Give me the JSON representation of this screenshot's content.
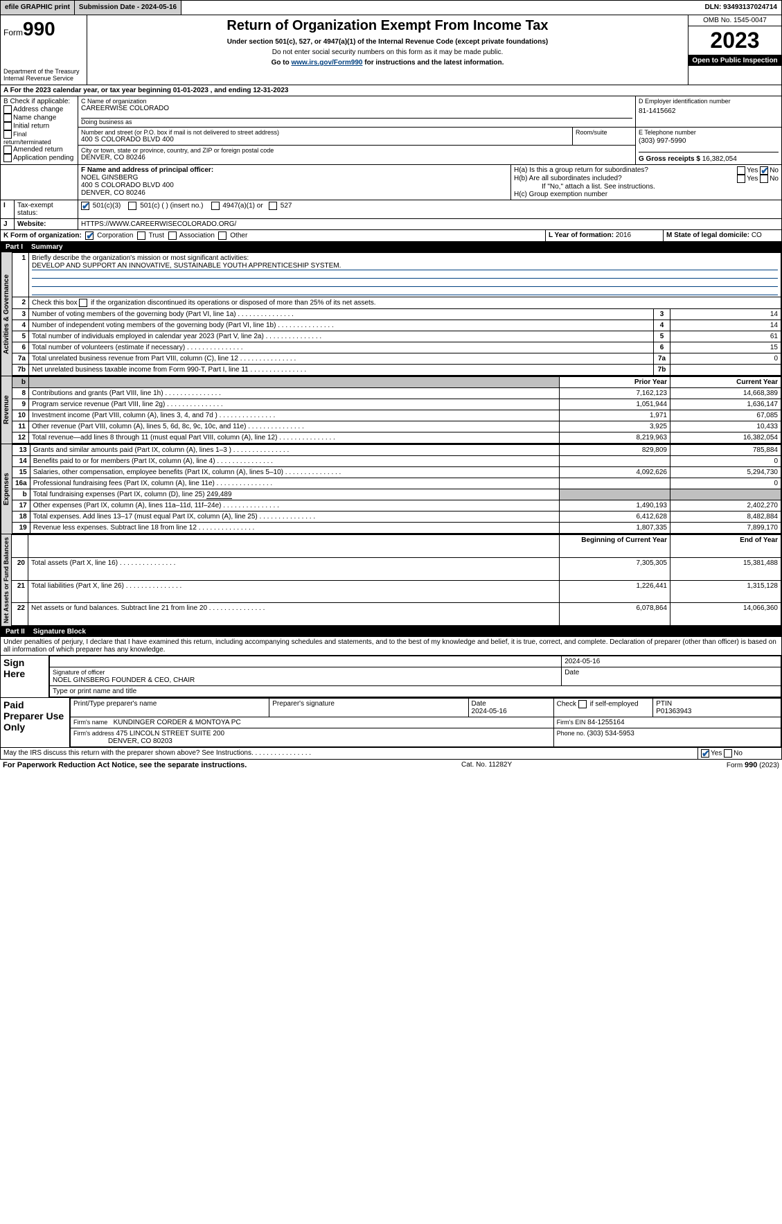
{
  "topbar": {
    "efile": "efile GRAPHIC print",
    "submission": "Submission Date - 2024-05-16",
    "dln": "DLN: 93493137024714"
  },
  "header": {
    "form_label": "Form",
    "form_num": "990",
    "dept1": "Department of the Treasury",
    "dept2": "Internal Revenue Service",
    "title": "Return of Organization Exempt From Income Tax",
    "sub1": "Under section 501(c), 527, or 4947(a)(1) of the Internal Revenue Code (except private foundations)",
    "sub2": "Do not enter social security numbers on this form as it may be made public.",
    "sub3": "Go to ",
    "link": "www.irs.gov/Form990",
    "sub3b": " for instructions and the latest information.",
    "omb": "OMB No. 1545-0047",
    "year": "2023",
    "openpub": "Open to Public Inspection"
  },
  "line_a": "A For the 2023 calendar year, or tax year beginning 01-01-2023    , and ending 12-31-2023",
  "box_b": {
    "title": "B Check if applicable:",
    "items": [
      "Address change",
      "Name change",
      "Initial return",
      "Final return/terminated",
      "Amended return",
      "Application pending"
    ]
  },
  "box_c": {
    "lbl_name": "C Name of organization",
    "name": "CAREERWISE COLORADO",
    "dba": "Doing business as",
    "lbl_addr": "Number and street (or P.O. box if mail is not delivered to street address)",
    "addr": "400 S COLORADO BLVD 400",
    "room": "Room/suite",
    "lbl_city": "City or town, state or province, country, and ZIP or foreign postal code",
    "city": "DENVER, CO  80246"
  },
  "box_d": {
    "lbl": "D Employer identification number",
    "val": "81-1415662"
  },
  "box_e": {
    "lbl": "E Telephone number",
    "val": "(303) 997-5990"
  },
  "box_g": {
    "lbl": "G Gross receipts $ ",
    "val": "16,382,054"
  },
  "box_f": {
    "lbl": "F  Name and address of principal officer:",
    "name": "NOEL GINSBERG",
    "addr1": "400 S COLORADO BLVD 400",
    "addr2": "DENVER, CO  80246"
  },
  "box_h": {
    "a_lbl": "H(a)  Is this a group return for subordinates?",
    "b_lbl": "H(b)  Are all subordinates included?",
    "b_note": "If \"No,\" attach a list. See instructions.",
    "c_lbl": "H(c)  Group exemption number"
  },
  "tax_status": {
    "lbl": "Tax-exempt status:",
    "o1": "501(c)(3)",
    "o2": "501(c) (  ) (insert no.)",
    "o3": "4947(a)(1) or",
    "o4": "527"
  },
  "box_j": {
    "lbl": "J",
    "lbl2": "Website:",
    "val": "HTTPS://WWW.CAREERWISECOLORADO.ORG/"
  },
  "box_k": {
    "lbl": "K Form of organization:",
    "o1": "Corporation",
    "o2": "Trust",
    "o3": "Association",
    "o4": "Other"
  },
  "box_l": {
    "lbl": "L Year of formation: ",
    "val": "2016"
  },
  "box_m": {
    "lbl": "M State of legal domicile: ",
    "val": "CO"
  },
  "part1": {
    "part": "Part I",
    "title": "Summary"
  },
  "summary": {
    "l1_lbl": "Briefly describe the organization's mission or most significant activities:",
    "l1_val": "DEVELOP AND SUPPORT AN INNOVATIVE, SUSTAINABLE YOUTH APPRENTICESHIP SYSTEM.",
    "l2": "Check this box       if the organization discontinued its operations or disposed of more than 25% of its net assets.",
    "rows_gov": [
      {
        "n": "3",
        "t": "Number of voting members of the governing body (Part VI, line 1a)",
        "v": "14"
      },
      {
        "n": "4",
        "t": "Number of independent voting members of the governing body (Part VI, line 1b)",
        "v": "14"
      },
      {
        "n": "5",
        "t": "Total number of individuals employed in calendar year 2023 (Part V, line 2a)",
        "v": "61"
      },
      {
        "n": "6",
        "t": "Total number of volunteers (estimate if necessary)",
        "v": "15"
      },
      {
        "n": "7a",
        "t": "Total unrelated business revenue from Part VIII, column (C), line 12",
        "v": "0"
      },
      {
        "n": "7b",
        "t": "Net unrelated business taxable income from Form 990-T, Part I, line 11",
        "v": ""
      }
    ],
    "hdr_prior": "Prior Year",
    "hdr_curr": "Current Year",
    "rows_rev": [
      {
        "n": "8",
        "t": "Contributions and grants (Part VIII, line 1h)",
        "p": "7,162,123",
        "c": "14,668,389"
      },
      {
        "n": "9",
        "t": "Program service revenue (Part VIII, line 2g)",
        "p": "1,051,944",
        "c": "1,636,147"
      },
      {
        "n": "10",
        "t": "Investment income (Part VIII, column (A), lines 3, 4, and 7d )",
        "p": "1,971",
        "c": "67,085"
      },
      {
        "n": "11",
        "t": "Other revenue (Part VIII, column (A), lines 5, 6d, 8c, 9c, 10c, and 11e)",
        "p": "3,925",
        "c": "10,433"
      },
      {
        "n": "12",
        "t": "Total revenue—add lines 8 through 11 (must equal Part VIII, column (A), line 12)",
        "p": "8,219,963",
        "c": "16,382,054"
      }
    ],
    "rows_exp": [
      {
        "n": "13",
        "t": "Grants and similar amounts paid (Part IX, column (A), lines 1–3 )",
        "p": "829,809",
        "c": "785,884"
      },
      {
        "n": "14",
        "t": "Benefits paid to or for members (Part IX, column (A), line 4)",
        "p": "",
        "c": "0"
      },
      {
        "n": "15",
        "t": "Salaries, other compensation, employee benefits (Part IX, column (A), lines 5–10)",
        "p": "4,092,626",
        "c": "5,294,730"
      },
      {
        "n": "16a",
        "t": "Professional fundraising fees (Part IX, column (A), line 11e)",
        "p": "",
        "c": "0"
      }
    ],
    "l16b": "Total fundraising expenses (Part IX, column (D), line 25) ",
    "l16b_val": "249,489",
    "rows_exp2": [
      {
        "n": "17",
        "t": "Other expenses (Part IX, column (A), lines 11a–11d, 11f–24e)",
        "p": "1,490,193",
        "c": "2,402,270"
      },
      {
        "n": "18",
        "t": "Total expenses. Add lines 13–17 (must equal Part IX, column (A), line 25)",
        "p": "6,412,628",
        "c": "8,482,884"
      },
      {
        "n": "19",
        "t": "Revenue less expenses. Subtract line 18 from line 12",
        "p": "1,807,335",
        "c": "7,899,170"
      }
    ],
    "hdr_begin": "Beginning of Current Year",
    "hdr_end": "End of Year",
    "rows_net": [
      {
        "n": "20",
        "t": "Total assets (Part X, line 16)",
        "p": "7,305,305",
        "c": "15,381,488"
      },
      {
        "n": "21",
        "t": "Total liabilities (Part X, line 26)",
        "p": "1,226,441",
        "c": "1,315,128"
      },
      {
        "n": "22",
        "t": "Net assets or fund balances. Subtract line 21 from line 20",
        "p": "6,078,864",
        "c": "14,066,360"
      }
    ]
  },
  "vert": {
    "gov": "Activities & Governance",
    "rev": "Revenue",
    "exp": "Expenses",
    "net": "Net Assets or Fund Balances"
  },
  "part2": {
    "part": "Part II",
    "title": "Signature Block"
  },
  "sig_intro": "Under penalties of perjury, I declare that I have examined this return, including accompanying schedules and statements, and to the best of my knowledge and belief, it is true, correct, and complete. Declaration of preparer (other than officer) is based on all information of which preparer has any knowledge.",
  "sign": {
    "here": "Sign Here",
    "date": "2024-05-16",
    "sig_lbl": "Signature of officer",
    "name": "NOEL GINSBERG FOUNDER & CEO, CHAIR",
    "type_lbl": "Type or print name and title",
    "date_lbl": "Date"
  },
  "prep": {
    "title": "Paid Preparer Use Only",
    "h1": "Print/Type preparer's name",
    "h2": "Preparer's signature",
    "h3": "Date",
    "d3": "2024-05-16",
    "h4a": "Check",
    "h4b": "if self-employed",
    "h5": "PTIN",
    "ptin": "P01363943",
    "firm_lbl": "Firm's name",
    "firm": "KUNDINGER CORDER & MONTOYA PC",
    "ein_lbl": "Firm's EIN",
    "ein": "84-1255164",
    "addr_lbl": "Firm's address",
    "addr1": "475 LINCOLN STREET SUITE 200",
    "addr2": "DENVER, CO  80203",
    "phone_lbl": "Phone no.",
    "phone": "(303) 534-5953"
  },
  "discuss": "May the IRS discuss this return with the preparer shown above? See Instructions.",
  "footer": {
    "l": "For Paperwork Reduction Act Notice, see the separate instructions.",
    "m": "Cat. No. 11282Y",
    "r": "Form 990 (2023)"
  }
}
